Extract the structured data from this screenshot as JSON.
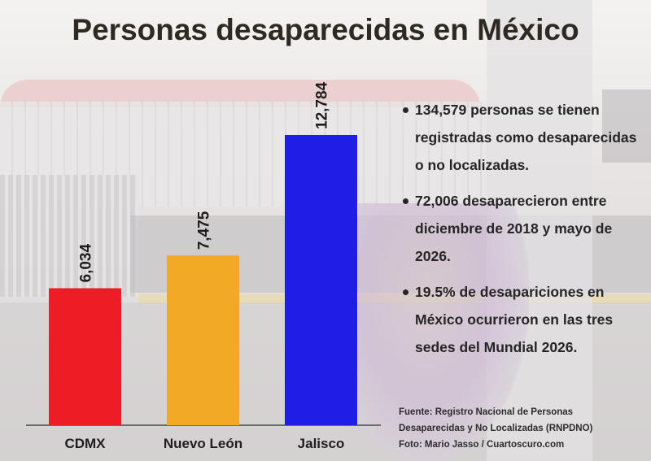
{
  "title": "Personas desaparecidas en México",
  "chart_data": {
    "type": "bar",
    "categories": [
      "CDMX",
      "Nuevo León",
      "Jalisco"
    ],
    "values": [
      6034,
      7475,
      12784
    ],
    "value_labels": [
      "6,034",
      "7,475",
      "12,784"
    ],
    "colors": [
      "#ee1c25",
      "#f2a925",
      "#1f1de6"
    ],
    "ylim": [
      0,
      13000
    ],
    "grid": false,
    "legend": "none"
  },
  "bullets": [
    "134,579 personas se tienen registradas como desaparecidas o no localizadas.",
    "72,006 desaparecieron entre diciembre de 2018 y mayo de 2026.",
    "19.5% de desapariciones en México ocurrieron en las tres sedes del Mundial 2026."
  ],
  "source": {
    "line1": "Fuente: Registro Nacional de Personas",
    "line2": "Desaparecidas y No Localizadas (RNPDNO)",
    "photo": "Foto: Mario Jasso / Cuartoscuro.com"
  }
}
